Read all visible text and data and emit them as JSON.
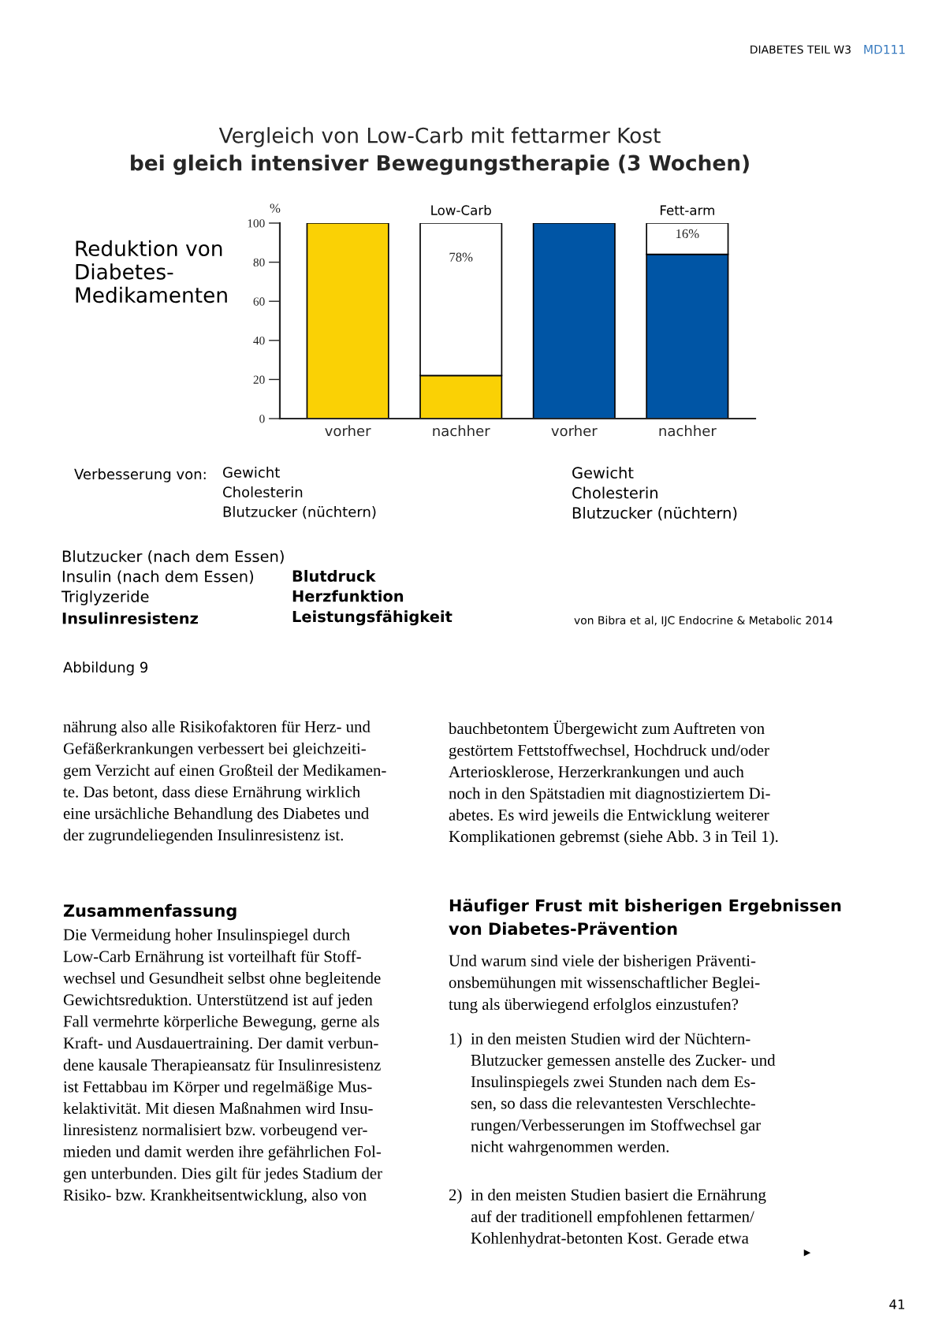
{
  "chart_data": {
    "type": "bar",
    "title": "Vergleich von Low-Carb mit fettarmer Kost",
    "subtitle": "bei gleich intensiver Bewegungstherapie (3 Wochen)",
    "ylabel": "%",
    "categories": [
      "vorher",
      "nachher",
      "vorher",
      "nachher"
    ],
    "stacked": true,
    "series": [
      {
        "colors": [
          "#fad105",
          "#fad105",
          "#0055a5",
          "#0055a5"
        ],
        "values": [
          100,
          22,
          100,
          84
        ]
      },
      {
        "color": "#ffffff",
        "values": [
          null,
          78,
          null,
          16
        ],
        "value_labels": [
          null,
          "78%",
          null,
          "16%"
        ]
      }
    ],
    "ylim": [
      0,
      100
    ],
    "yticks": [
      0,
      20,
      40,
      60,
      80,
      100
    ],
    "grid": false,
    "legend": false,
    "annotations": [
      "DIABETES TEIL W3",
      "MD111",
      "Reduktion von\nDiabetes-\nMedikamenten",
      "Low-Carb",
      "Fett-arm",
      "Verbesserung von:",
      "Gewicht\nCholesterin\nBlutzucker (nüchtern)",
      "Gewicht\nCholesterin\nBlutzucker (nüchtern)",
      "Blutzucker (nach dem Essen)\nInsulin (nach dem Essen)\nTriglyzeride",
      "Insulinresistenz",
      "Blutdruck\nHerzfunktion\nLeistungsfähigkeit",
      "von Bibra et al, IJC Endocrine & Metabolic 2014",
      "Abbildung 9",
      "nährung also alle Risikofaktoren für Herz- und\nGefäßerkrankungen verbessert bei gleichzeiti-\ngem Verzicht auf einen Großteil der Medikamen-\nte. Das betont, dass diese Ernährung wirklich\neine ursächliche Behandlung des Diabetes und\nder zugrundeliegenden Insulinresistenz ist.",
      "Zusammenfassung",
      "Die Vermeidung hoher Insulinspiegel durch\nLow-Carb Ernährung ist vorteilhaft für Stoff-\nwechsel und Gesundheit selbst ohne begleitende\nGewichtsreduktion. Unterstützend ist auf jeden\nFall vermehrte körperliche Bewegung, gerne als\nKraft- und Ausdauertraining. Der damit verbun-\ndene kausale Therapieansatz für Insulinresistenz\nist Fettabbau im Körper und regelmäßige Mus-\nkelaktivität. Mit diesen Maßnahmen wird Insu-\nlinresistenz normalisiert bzw. vorbeugend ver-\nmieden und damit werden ihre gefährlichen Fol-\ngen unterbunden. Dies gilt für jedes Stadium der\nRisiko- bzw. Krankheitsentwicklung, also von",
      "bauchbetontem Übergewicht zum Auftreten von\ngestörtem Fettstoffwechsel, Hochdruck und/oder\nArteriosklerose, Herzerkrankungen und auch\nnoch in den Spätstadien mit diagnostiziertem Di-\nabetes. Es wird jeweils die Entwicklung weiterer\nKomplikationen gebremst (siehe Abb. 3 in Teil 1).",
      "Häufiger Frust mit bisherigen Ergebnissen\nvon Diabetes-Prävention",
      "Und warum sind viele der bisherigen Präventi-\nonsbemühungen mit wissenschaftlicher Beglei-\ntung als überwiegend erfolglos einzustufen?",
      "1)",
      "in den meisten Studien wird der Nüchtern-\nBlutzucker gemessen anstelle des Zucker- und\nInsulinspiegels zwei Stunden nach dem Es-\nsen, so dass die relevantesten Verschlechte-\nrungen/Verbesserungen im Stoffwechsel gar\nnicht wahrgenommen werden.",
      "2)",
      "in den meisten Studien basiert die Ernährung\nauf der traditionell empfohlenen fettarmen/\nKohlenhydrat-betonten Kost. Gerade etwa",
      "▶",
      "41"
    ]
  }
}
